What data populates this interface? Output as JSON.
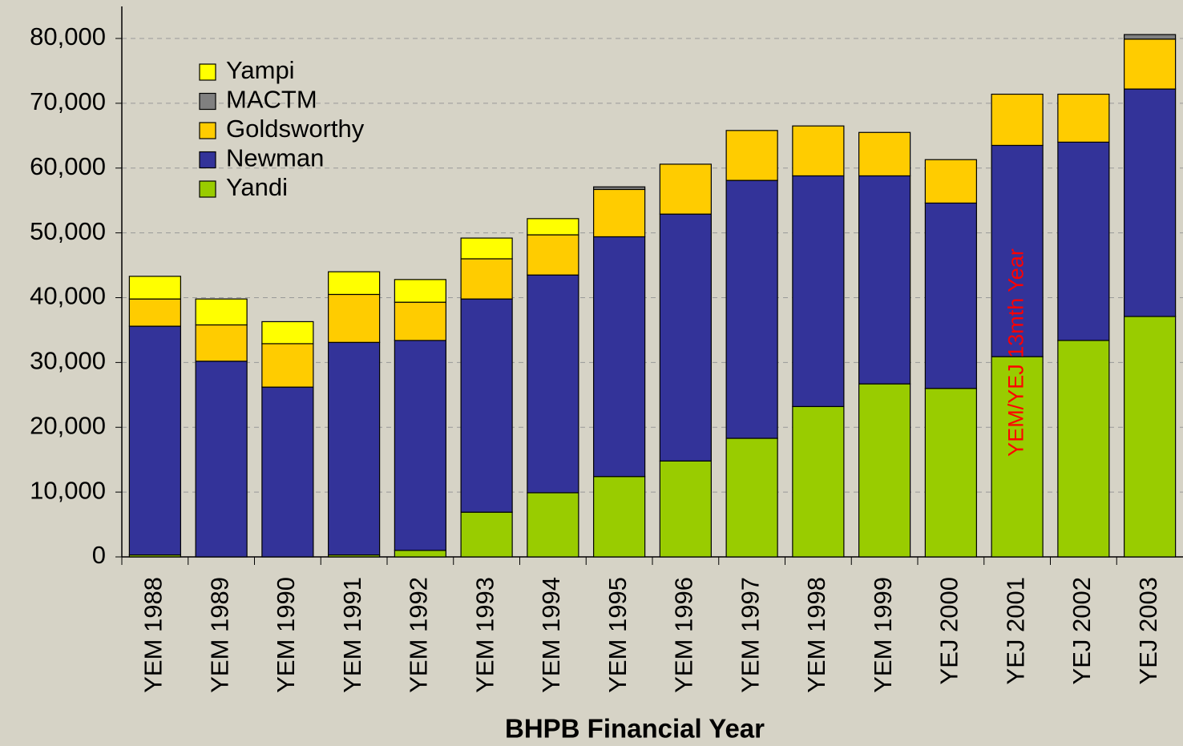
{
  "chart_data": {
    "type": "stacked_bar",
    "xlabel": "BHPB Financial Year",
    "annotation": "YEM/YEJ 13mth Year",
    "categories": [
      "YEM 1988",
      "YEM 1989",
      "YEM 1990",
      "YEM 1991",
      "YEM 1992",
      "YEM 1993",
      "YEM 1994",
      "YEM 1995",
      "YEM 1996",
      "YEM 1997",
      "YEM 1998",
      "YEM 1999",
      "YEJ 2000",
      "YEJ 2001",
      "YEJ 2002",
      "YEJ 2003"
    ],
    "series": [
      {
        "name": "Yandi",
        "color": "#99cc00",
        "values": [
          300,
          0,
          0,
          300,
          1000,
          6900,
          9900,
          12400,
          14800,
          18300,
          23200,
          26700,
          26000,
          30900,
          33400,
          37100
        ]
      },
      {
        "name": "Newman",
        "color": "#333399",
        "values": [
          35300,
          30200,
          26200,
          32800,
          32400,
          32900,
          33600,
          37000,
          38100,
          39800,
          35600,
          32100,
          28600,
          32600,
          30600,
          35100
        ]
      },
      {
        "name": "Goldsworthy",
        "color": "#ffcc00",
        "values": [
          4200,
          5600,
          6700,
          7400,
          5900,
          6200,
          6200,
          7300,
          7700,
          7700,
          7700,
          6700,
          6700,
          7900,
          7400,
          7700
        ]
      },
      {
        "name": "MACTM",
        "color": "#808080",
        "values": [
          0,
          0,
          0,
          0,
          0,
          0,
          0,
          400,
          0,
          0,
          0,
          0,
          0,
          0,
          0,
          700
        ]
      },
      {
        "name": "Yampi",
        "color": "#ffff00",
        "values": [
          3500,
          4000,
          3400,
          3500,
          3500,
          3200,
          2500,
          0,
          0,
          0,
          0,
          0,
          0,
          0,
          0,
          0
        ]
      }
    ],
    "ylim": [
      0,
      85000
    ],
    "yticks": [
      0,
      {
        "value": 10000,
        "label": "10,000"
      },
      {
        "value": 20000,
        "label": "20,000"
      },
      {
        "value": 30000,
        "label": "30,000"
      },
      {
        "value": 40000,
        "label": "40,000"
      },
      {
        "value": 50000,
        "label": "50,000"
      },
      {
        "value": 60000,
        "label": "60,000"
      },
      {
        "value": 70000,
        "label": "70,000"
      },
      {
        "value": 80000,
        "label": "80,000"
      }
    ],
    "grid": true,
    "legend": "upper left"
  }
}
